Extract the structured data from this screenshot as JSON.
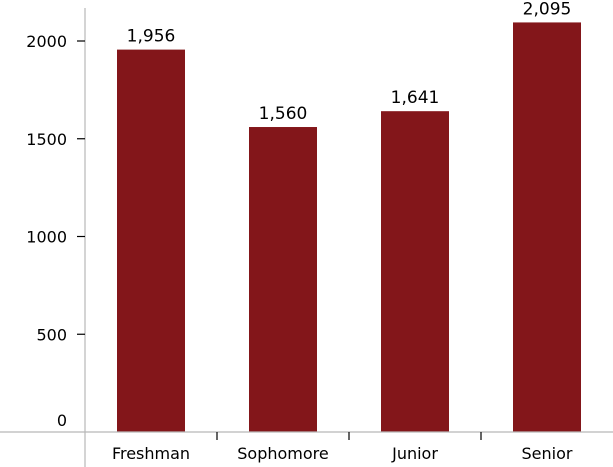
{
  "chart_data": {
    "type": "bar",
    "categories": [
      "Freshman",
      "Sophomore",
      "Junior",
      "Senior"
    ],
    "values": [
      1956,
      1560,
      1641,
      2095
    ],
    "data_labels": [
      "1,956",
      "1,560",
      "1,641",
      "2,095"
    ],
    "title": "",
    "xlabel": "",
    "ylabel": "",
    "ylim": [
      0,
      2200
    ],
    "yticks": [
      0,
      500,
      1000,
      1500,
      2000
    ],
    "ytick_labels": [
      "0",
      "500",
      "1000",
      "1500",
      "2000"
    ],
    "grid": false,
    "legend": "none",
    "bar_color": "#83161a",
    "axis_color": "#b8b8b8"
  }
}
